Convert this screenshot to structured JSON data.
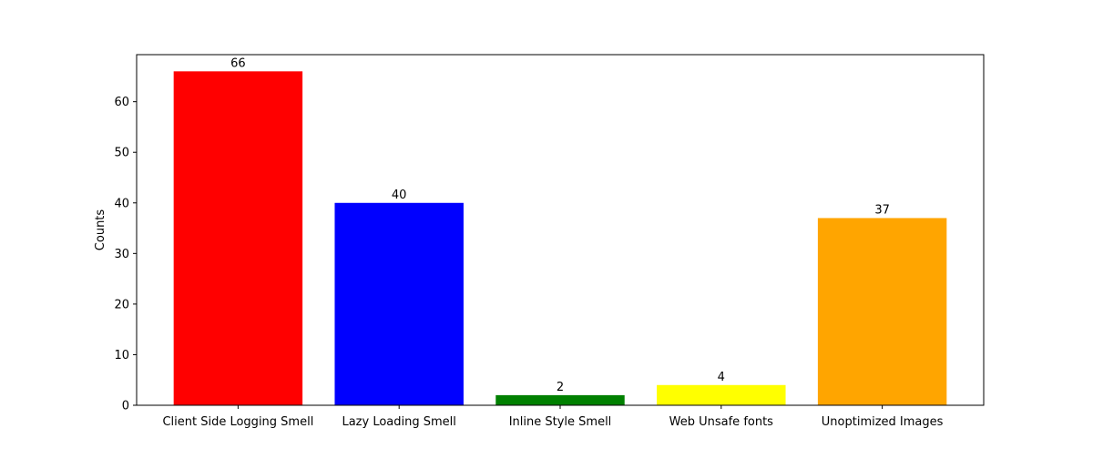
{
  "chart_data": {
    "type": "bar",
    "title": "",
    "xlabel": "",
    "ylabel": "Counts",
    "categories": [
      "Client Side Logging Smell",
      "Lazy Loading Smell",
      "Inline Style Smell",
      "Web Unsafe fonts",
      "Unoptimized Images"
    ],
    "values": [
      66,
      40,
      2,
      4,
      37
    ],
    "colors": [
      "#ff0000",
      "#0000ff",
      "#008000",
      "#ffff00",
      "#ffa500"
    ],
    "ylim": [
      0,
      69.3
    ],
    "yticks": [
      0,
      10,
      20,
      30,
      40,
      50,
      60
    ],
    "grid": false,
    "legend": "none"
  }
}
